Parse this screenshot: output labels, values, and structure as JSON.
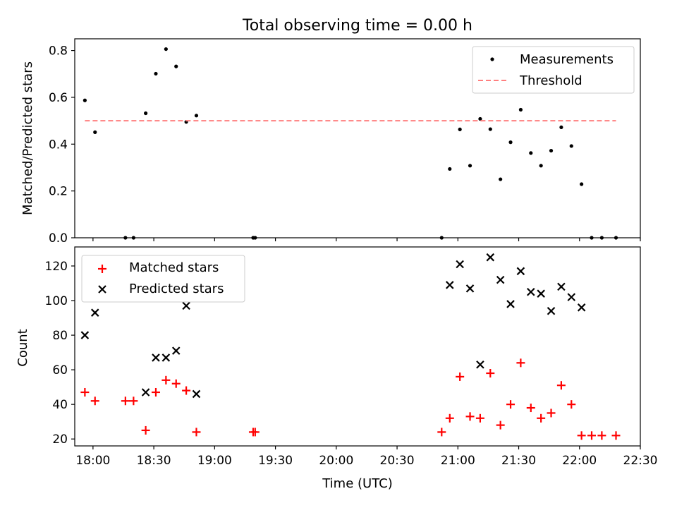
{
  "chart_data": [
    {
      "type": "scatter",
      "title": "Total observing time = 0.00 h",
      "xlabel": "",
      "ylabel": "Matched/Predicted stars",
      "xlim": [
        "17:51",
        "22:30"
      ],
      "ylim": [
        0,
        0.85
      ],
      "yticks": [
        "0.0",
        "0.2",
        "0.4",
        "0.6",
        "0.8"
      ],
      "legend_position": "top-right",
      "series": [
        {
          "name": "Measurements",
          "color": "#000000",
          "marker": "dot",
          "points": [
            [
              "17:56",
              0.587
            ],
            [
              "18:01",
              0.451
            ],
            [
              "18:16",
              0.0
            ],
            [
              "18:20",
              0.0
            ],
            [
              "18:26",
              0.532
            ],
            [
              "18:31",
              0.701
            ],
            [
              "18:36",
              0.806
            ],
            [
              "18:41",
              0.732
            ],
            [
              "18:46",
              0.495
            ],
            [
              "18:51",
              0.522
            ],
            [
              "19:19",
              0.0
            ],
            [
              "19:20",
              0.0
            ],
            [
              "20:52",
              0.0
            ],
            [
              "20:56",
              0.294
            ],
            [
              "21:01",
              0.463
            ],
            [
              "21:06",
              0.308
            ],
            [
              "21:11",
              0.508
            ],
            [
              "21:16",
              0.464
            ],
            [
              "21:21",
              0.25
            ],
            [
              "21:26",
              0.408
            ],
            [
              "21:31",
              0.547
            ],
            [
              "21:36",
              0.362
            ],
            [
              "21:41",
              0.308
            ],
            [
              "21:46",
              0.372
            ],
            [
              "21:51",
              0.472
            ],
            [
              "21:56",
              0.392
            ],
            [
              "22:01",
              0.229
            ],
            [
              "22:06",
              0.0
            ],
            [
              "22:11",
              0.0
            ],
            [
              "22:18",
              0.0
            ]
          ]
        },
        {
          "name": "Threshold",
          "color": "#ff7f7f",
          "style": "dashed",
          "points": [
            [
              "17:56",
              0.5
            ],
            [
              "22:18",
              0.5
            ]
          ]
        }
      ]
    },
    {
      "type": "scatter",
      "title": "",
      "xlabel": "Time (UTC)",
      "ylabel": "Count",
      "xlim": [
        "17:51",
        "22:30"
      ],
      "ylim": [
        16,
        131
      ],
      "yticks": [
        "20",
        "40",
        "60",
        "80",
        "100",
        "120"
      ],
      "xticks": [
        "18:00",
        "18:30",
        "19:00",
        "19:30",
        "20:00",
        "20:30",
        "21:00",
        "21:30",
        "22:00",
        "22:30"
      ],
      "legend_position": "top-left",
      "series": [
        {
          "name": "Matched stars",
          "color": "#ff0000",
          "marker": "plus",
          "points": [
            [
              "17:56",
              47
            ],
            [
              "18:01",
              42
            ],
            [
              "18:16",
              42
            ],
            [
              "18:20",
              42
            ],
            [
              "18:26",
              25
            ],
            [
              "18:31",
              47
            ],
            [
              "18:36",
              54
            ],
            [
              "18:41",
              52
            ],
            [
              "18:46",
              48
            ],
            [
              "18:51",
              24
            ],
            [
              "19:19",
              24
            ],
            [
              "19:20",
              24
            ],
            [
              "20:52",
              24
            ],
            [
              "20:56",
              32
            ],
            [
              "21:01",
              56
            ],
            [
              "21:06",
              33
            ],
            [
              "21:11",
              32
            ],
            [
              "21:16",
              58
            ],
            [
              "21:21",
              28
            ],
            [
              "21:26",
              40
            ],
            [
              "21:31",
              64
            ],
            [
              "21:36",
              38
            ],
            [
              "21:41",
              32
            ],
            [
              "21:46",
              35
            ],
            [
              "21:51",
              51
            ],
            [
              "21:56",
              40
            ],
            [
              "22:01",
              22
            ],
            [
              "22:06",
              22
            ],
            [
              "22:11",
              22
            ],
            [
              "22:18",
              22
            ]
          ]
        },
        {
          "name": "Predicted stars",
          "color": "#000000",
          "marker": "x",
          "points": [
            [
              "17:56",
              80
            ],
            [
              "18:01",
              93
            ],
            [
              "18:26",
              47
            ],
            [
              "18:31",
              67
            ],
            [
              "18:36",
              67
            ],
            [
              "18:41",
              71
            ],
            [
              "18:46",
              97
            ],
            [
              "18:51",
              46
            ],
            [
              "20:56",
              109
            ],
            [
              "21:01",
              121
            ],
            [
              "21:06",
              107
            ],
            [
              "21:11",
              63
            ],
            [
              "21:16",
              125
            ],
            [
              "21:21",
              112
            ],
            [
              "21:26",
              98
            ],
            [
              "21:31",
              117
            ],
            [
              "21:36",
              105
            ],
            [
              "21:41",
              104
            ],
            [
              "21:46",
              94
            ],
            [
              "21:51",
              108
            ],
            [
              "21:56",
              102
            ],
            [
              "22:01",
              96
            ]
          ]
        }
      ]
    }
  ]
}
